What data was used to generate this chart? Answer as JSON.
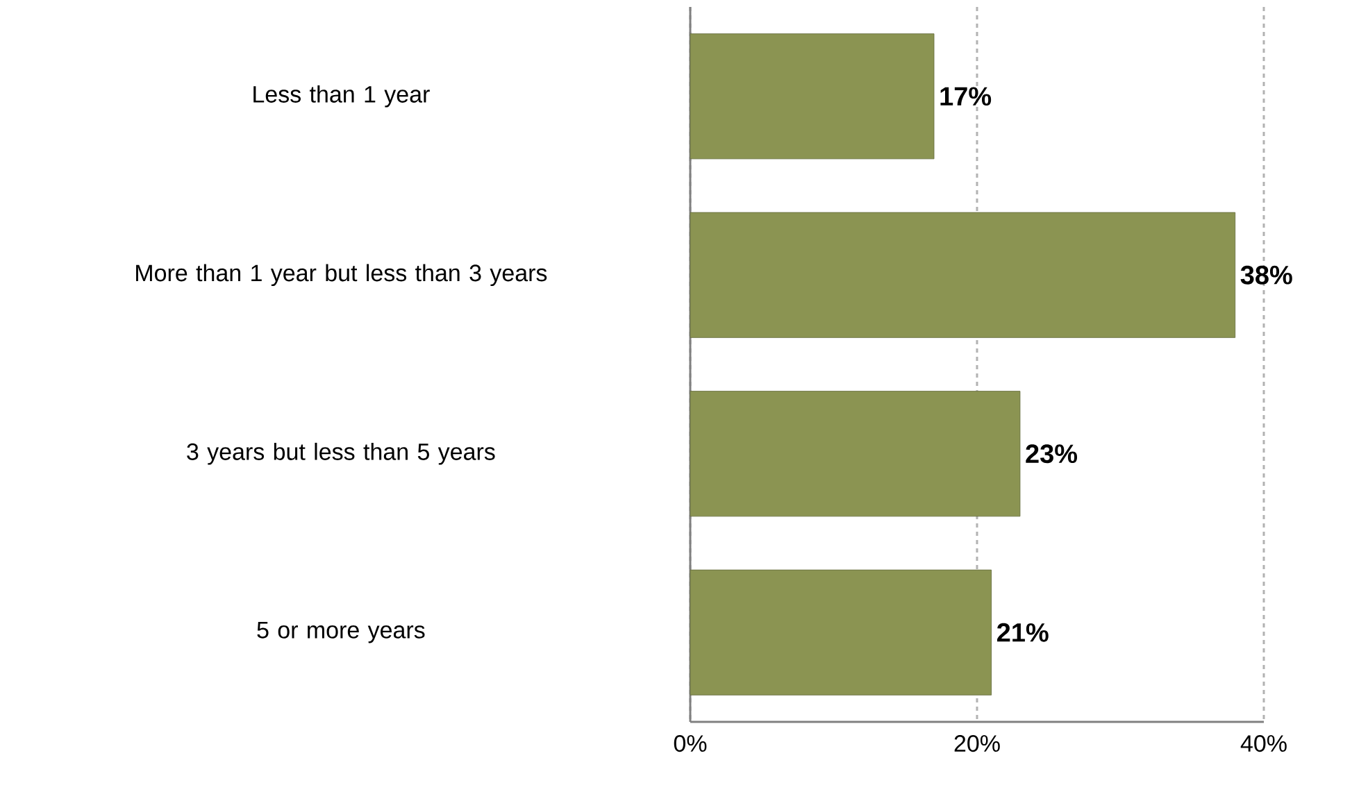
{
  "chart_data": {
    "type": "bar",
    "orientation": "horizontal",
    "categories": [
      "Less than 1 year",
      "More than 1 year but less than 3 years",
      "3 years but less than 5 years",
      "5 or more years"
    ],
    "values": [
      17,
      38,
      23,
      21
    ],
    "value_labels": [
      "17%",
      "38%",
      "23%",
      "21%"
    ],
    "color": "#8b9452",
    "xlim": [
      0,
      40
    ],
    "xticks": [
      {
        "value": 0,
        "label": "0%"
      },
      {
        "value": 20,
        "label": "20%"
      },
      {
        "value": 40,
        "label": "40%"
      }
    ],
    "grid": "x"
  }
}
